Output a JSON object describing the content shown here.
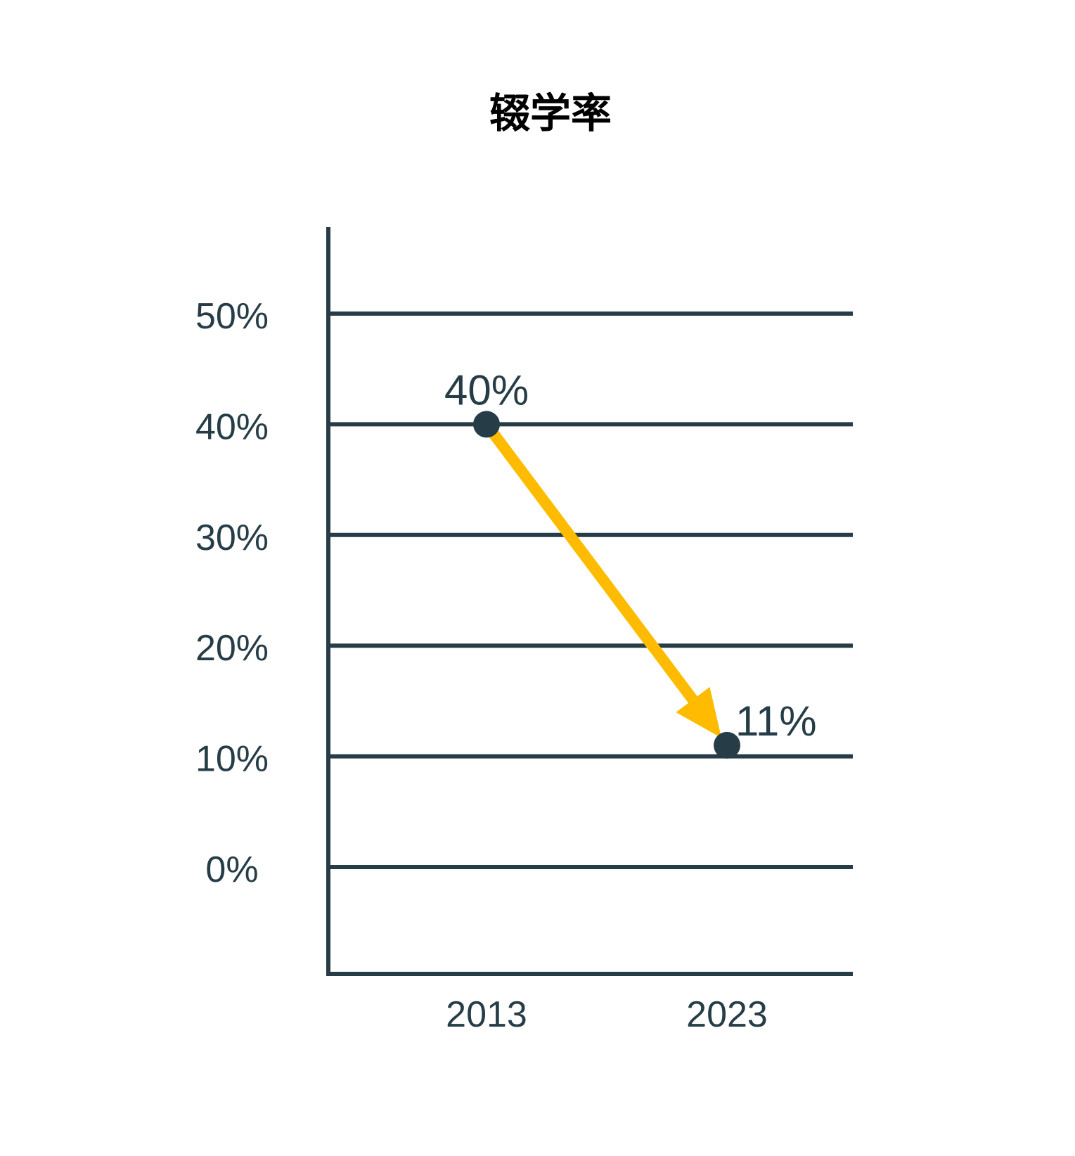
{
  "chart_data": {
    "type": "line",
    "title": "辍学率",
    "xlabel": "",
    "ylabel": "",
    "categories": [
      "2013",
      "2023"
    ],
    "series": [
      {
        "values": [
          40,
          11
        ],
        "data_labels": [
          "40%",
          "11%"
        ]
      }
    ],
    "y_ticks": [
      {
        "value": 0,
        "label": "0%"
      },
      {
        "value": 10,
        "label": "10%"
      },
      {
        "value": 20,
        "label": "20%"
      },
      {
        "value": 30,
        "label": "30%"
      },
      {
        "value": 40,
        "label": "40%"
      },
      {
        "value": 50,
        "label": "50%"
      }
    ],
    "ylim": [
      0,
      50
    ],
    "grid": true,
    "legend": "none",
    "colors": {
      "ink": "#263d47",
      "arrow": "#ffbb00",
      "background": "#ffffff"
    }
  }
}
